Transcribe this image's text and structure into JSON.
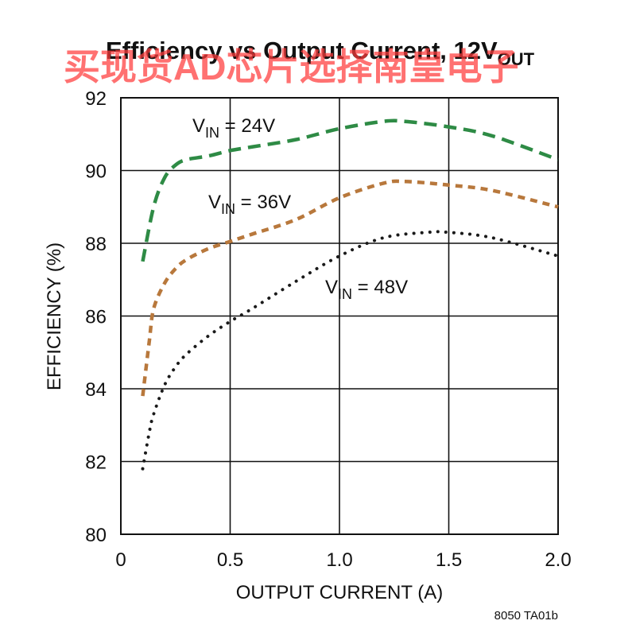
{
  "watermark": "买现货AD芯片选择南皇电子",
  "figure_code": "8050 TA01b",
  "chart_data": {
    "type": "line",
    "title": "Efficiency vs Output Current, 12V",
    "title_subscript": "OUT",
    "xlabel": "OUTPUT CURRENT (A)",
    "ylabel": "EFFICIENCY (%)",
    "xlim": [
      0,
      2.0
    ],
    "ylim": [
      80,
      92
    ],
    "xticks": [
      0,
      0.5,
      1.0,
      1.5,
      2.0
    ],
    "xtick_labels": [
      "0",
      "0.5",
      "1.0",
      "1.5",
      "2.0"
    ],
    "yticks": [
      80,
      82,
      84,
      86,
      88,
      90,
      92
    ],
    "yticks_labels": [
      "80",
      "82",
      "84",
      "86",
      "88",
      "90",
      "92"
    ],
    "grid": true,
    "legend": "inline labels",
    "series": [
      {
        "name": "VIN = 24V",
        "label_main": "V",
        "label_sub": "IN",
        "label_rest": " = 24V",
        "color": "#2e8b45",
        "style": "long-dash",
        "x": [
          0.1,
          0.15,
          0.2,
          0.25,
          0.3,
          0.4,
          0.5,
          0.6,
          0.8,
          1.0,
          1.2,
          1.3,
          1.5,
          1.7,
          2.0
        ],
        "y": [
          87.5,
          89.0,
          89.8,
          90.15,
          90.3,
          90.4,
          90.55,
          90.65,
          90.85,
          91.15,
          91.35,
          91.35,
          91.2,
          90.95,
          90.3
        ]
      },
      {
        "name": "VIN = 36V",
        "label_main": "V",
        "label_sub": "IN",
        "label_rest": " = 36V",
        "color": "#b8783c",
        "style": "short-dash",
        "x": [
          0.1,
          0.13,
          0.15,
          0.2,
          0.25,
          0.3,
          0.4,
          0.5,
          0.6,
          0.8,
          1.0,
          1.2,
          1.3,
          1.5,
          1.7,
          2.0
        ],
        "y": [
          83.8,
          85.3,
          86.2,
          86.9,
          87.3,
          87.55,
          87.85,
          88.05,
          88.25,
          88.65,
          89.25,
          89.65,
          89.7,
          89.6,
          89.45,
          89.0
        ]
      },
      {
        "name": "VIN = 48V",
        "label_main": "V",
        "label_sub": "IN",
        "label_rest": " = 48V",
        "color": "#1a1a1a",
        "style": "dotted",
        "x": [
          0.1,
          0.13,
          0.15,
          0.2,
          0.25,
          0.3,
          0.4,
          0.5,
          0.6,
          0.8,
          1.0,
          1.2,
          1.4,
          1.5,
          1.7,
          2.0
        ],
        "y": [
          81.8,
          82.8,
          83.3,
          84.1,
          84.6,
          84.95,
          85.45,
          85.85,
          86.2,
          86.95,
          87.65,
          88.15,
          88.3,
          88.3,
          88.15,
          87.65
        ]
      }
    ]
  }
}
